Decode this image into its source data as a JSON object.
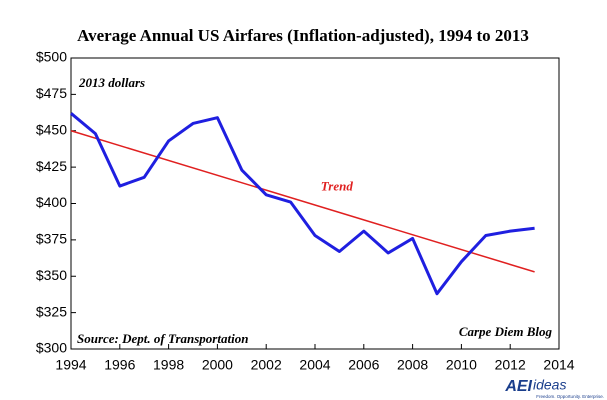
{
  "chart_data": {
    "type": "line",
    "title": "Average Annual US Airfares (Inflation-adjusted), 1994 to 2013",
    "x": [
      1994,
      1995,
      1996,
      1997,
      1998,
      1999,
      2000,
      2001,
      2002,
      2003,
      2004,
      2005,
      2006,
      2007,
      2008,
      2009,
      2010,
      2011,
      2012,
      2013
    ],
    "series": [
      {
        "color": "#1f1fe0",
        "values": [
          462,
          448,
          412,
          418,
          443,
          455,
          459,
          423,
          406,
          401,
          378,
          367,
          381,
          366,
          376,
          338,
          360,
          378,
          381,
          383
        ]
      }
    ],
    "trend": {
      "label": "Trend",
      "color": "#e02020",
      "x": [
        1994,
        2013
      ],
      "values": [
        450,
        353
      ]
    },
    "xlim": [
      1994,
      2014
    ],
    "xticks": [
      1994,
      1996,
      1998,
      2000,
      2002,
      2004,
      2006,
      2008,
      2010,
      2012,
      2014
    ],
    "ylim": [
      300,
      500
    ],
    "yticks": [
      {
        "value": 300,
        "label": "$300"
      },
      {
        "value": 325,
        "label": "$325"
      },
      {
        "value": 350,
        "label": "$350"
      },
      {
        "value": 375,
        "label": "$375"
      },
      {
        "value": 400,
        "label": "$400"
      },
      {
        "value": 425,
        "label": "$425"
      },
      {
        "value": 450,
        "label": "$450"
      },
      {
        "value": 475,
        "label": "$475"
      },
      {
        "value": 500,
        "label": "$500"
      }
    ],
    "grid": false,
    "annotations": [
      "2013 dollars",
      "Source: Dept. of Transportation",
      "Carpe Diem Blog"
    ]
  },
  "logo": {
    "mark": "AEI",
    "name": "ideas",
    "tagline": "Freedom. Opportunity. Enterprise."
  }
}
